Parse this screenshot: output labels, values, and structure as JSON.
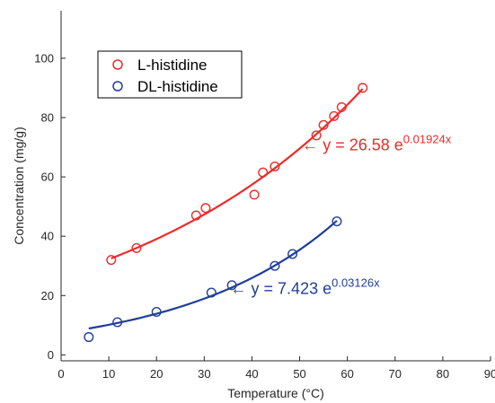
{
  "chart_data": {
    "type": "scatter",
    "xlabel": "Temperature (°C)",
    "ylabel": "Concentration (mg/g)",
    "xlim": [
      0,
      90
    ],
    "ylim": [
      -2,
      116
    ],
    "xticks": [
      0,
      10,
      20,
      30,
      40,
      50,
      60,
      70,
      80,
      90
    ],
    "yticks": [
      0,
      20,
      40,
      60,
      80,
      100
    ],
    "grid": false,
    "legend_position": "top-left",
    "series": [
      {
        "name": "L-histidine",
        "color": "#ee2a2a",
        "marker": "circle-open",
        "x": [
          10.5,
          15.8,
          28.3,
          30.3,
          40.5,
          42.3,
          44.8,
          53.5,
          55.0,
          57.2,
          58.8,
          63.2
        ],
        "y": [
          32.0,
          36.0,
          47.0,
          49.5,
          54.0,
          61.5,
          63.5,
          74.0,
          77.5,
          80.5,
          83.5,
          90.0
        ],
        "fit": {
          "a": 26.58,
          "b": 0.01924,
          "x_range": [
            10.5,
            63.2
          ]
        },
        "equation": {
          "prefix": "← y = 26.58 e",
          "exponent": "0.01924x"
        }
      },
      {
        "name": "DL-histidine",
        "color": "#1f3e99",
        "marker": "circle-open",
        "x": [
          5.8,
          11.8,
          20.0,
          31.5,
          35.8,
          44.8,
          48.5,
          57.8
        ],
        "y": [
          6.0,
          11.0,
          14.5,
          21.0,
          23.5,
          30.0,
          34.0,
          45.0
        ],
        "fit": {
          "a": 7.423,
          "b": 0.03126,
          "x_range": [
            5.8,
            57.8
          ]
        },
        "equation": {
          "prefix": "← y = 7.423 e",
          "exponent": "0.03126x"
        }
      }
    ]
  }
}
